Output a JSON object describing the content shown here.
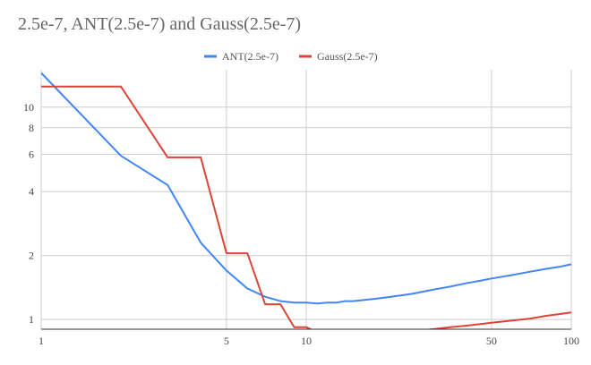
{
  "chart_data": {
    "type": "line",
    "title": "2.5e-7, ANT(2.5e-7) and Gauss(2.5e-7)",
    "xlabel": "",
    "ylabel": "",
    "x_scale": "log",
    "y_scale": "log",
    "xlim": [
      1,
      100
    ],
    "ylim": [
      0.9,
      15
    ],
    "grid": true,
    "legend_position": "top",
    "x_ticks": [
      {
        "value": 1,
        "label": "1"
      },
      {
        "value": 5,
        "label": "5"
      },
      {
        "value": 10,
        "label": "10"
      },
      {
        "value": 50,
        "label": "50"
      },
      {
        "value": 100,
        "label": "100"
      }
    ],
    "x_gridlines": [
      1,
      5,
      10,
      50,
      100
    ],
    "y_ticks": [
      {
        "value": 1,
        "label": "1"
      },
      {
        "value": 2,
        "label": "2"
      },
      {
        "value": 4,
        "label": "4"
      },
      {
        "value": 6,
        "label": "6"
      },
      {
        "value": 8,
        "label": "8"
      },
      {
        "value": 10,
        "label": "10"
      }
    ],
    "series": [
      {
        "name": "ANT(2.5e-7)",
        "color": "#4285f4",
        "points": [
          [
            1,
            14.5
          ],
          [
            2,
            5.9
          ],
          [
            3,
            4.3
          ],
          [
            4,
            2.3
          ],
          [
            5,
            1.7
          ],
          [
            6,
            1.4
          ],
          [
            7,
            1.28
          ],
          [
            8,
            1.22
          ],
          [
            9,
            1.2
          ],
          [
            10,
            1.2
          ],
          [
            11,
            1.19
          ],
          [
            12,
            1.2
          ],
          [
            13,
            1.2
          ],
          [
            14,
            1.22
          ],
          [
            15,
            1.22
          ],
          [
            16,
            1.23
          ],
          [
            18,
            1.25
          ],
          [
            20,
            1.27
          ],
          [
            25,
            1.32
          ],
          [
            30,
            1.38
          ],
          [
            35,
            1.43
          ],
          [
            40,
            1.48
          ],
          [
            45,
            1.52
          ],
          [
            50,
            1.56
          ],
          [
            60,
            1.62
          ],
          [
            70,
            1.68
          ],
          [
            80,
            1.73
          ],
          [
            90,
            1.77
          ],
          [
            100,
            1.82
          ]
        ]
      },
      {
        "name": "Gauss(2.5e-7)",
        "color": "#db4437",
        "points": [
          [
            1,
            12.5
          ],
          [
            2,
            12.5
          ],
          [
            3,
            5.8
          ],
          [
            4,
            5.8
          ],
          [
            5,
            2.05
          ],
          [
            6,
            2.05
          ],
          [
            7,
            1.18
          ],
          [
            8,
            1.18
          ],
          [
            9,
            0.92
          ],
          [
            10,
            0.92
          ],
          [
            11,
            0.87
          ],
          [
            12,
            0.87
          ],
          [
            14,
            0.86
          ],
          [
            16,
            0.86
          ],
          [
            18,
            0.86
          ],
          [
            20,
            0.865
          ],
          [
            25,
            0.88
          ],
          [
            30,
            0.9
          ],
          [
            35,
            0.92
          ],
          [
            40,
            0.935
          ],
          [
            45,
            0.95
          ],
          [
            50,
            0.965
          ],
          [
            60,
            0.99
          ],
          [
            70,
            1.01
          ],
          [
            80,
            1.04
          ],
          [
            90,
            1.06
          ],
          [
            100,
            1.08
          ]
        ]
      }
    ]
  }
}
